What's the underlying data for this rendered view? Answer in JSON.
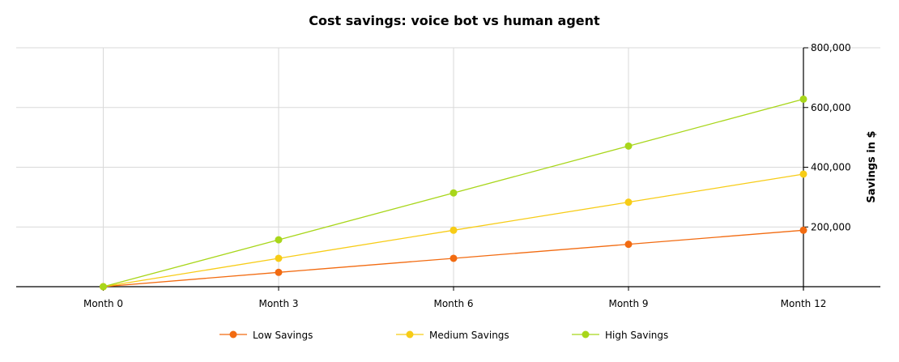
{
  "chart_data": {
    "type": "line",
    "title": "Cost savings: voice bot vs human agent",
    "xlabel": "",
    "ylabel": "Savings in $",
    "categories": [
      "Month 0",
      "Month 3",
      "Month 6",
      "Month 9",
      "Month 12"
    ],
    "y_ticks": [
      "200,000",
      "400,000",
      "600,000",
      "800,000"
    ],
    "y_tick_values": [
      200000,
      400000,
      600000,
      800000
    ],
    "ylim": [
      0,
      800000
    ],
    "y_axis_side": "right",
    "grid": true,
    "legend_position": "bottom",
    "series": [
      {
        "name": "Low Savings",
        "color": "#f26b11",
        "values": [
          0,
          48000,
          95000,
          142000,
          189000
        ]
      },
      {
        "name": "Medium Savings",
        "color": "#f7cc16",
        "values": [
          0,
          95000,
          189000,
          283000,
          377000
        ]
      },
      {
        "name": "High Savings",
        "color": "#a8d61a",
        "values": [
          0,
          157000,
          314000,
          471000,
          628000
        ]
      }
    ]
  }
}
